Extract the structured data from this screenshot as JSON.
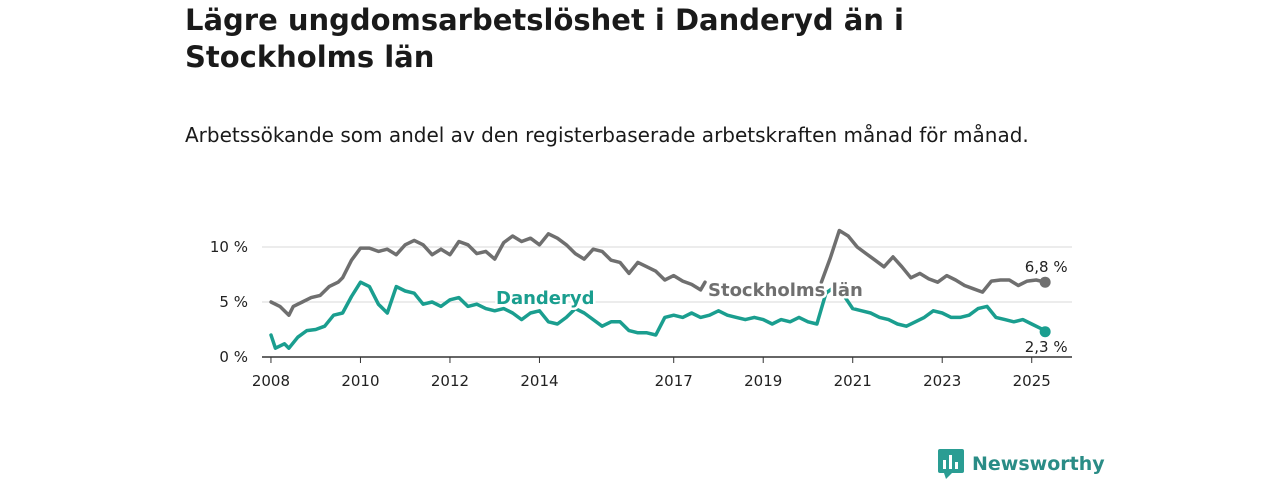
{
  "header": {
    "title": "Lägre ungdomsarbetslöshet i Danderyd än i Stockholms län",
    "subtitle": "Arbetssökande som andel av den registerbaserade arbetskraften månad för månad."
  },
  "brand": {
    "name": "Newsworthy",
    "icon": "newsworthy-logo-icon",
    "color": "#2a9d93"
  },
  "chart_data": {
    "type": "line",
    "x_unit": "year",
    "xlim": [
      2007.8,
      2025.9
    ],
    "ylim": [
      0,
      10
    ],
    "x_ticks": [
      {
        "value": 2008,
        "label": "2008"
      },
      {
        "value": 2010,
        "label": "2010"
      },
      {
        "value": 2012,
        "label": "2012"
      },
      {
        "value": 2014,
        "label": "2014"
      },
      {
        "value": 2017,
        "label": "2017"
      },
      {
        "value": 2019,
        "label": "2019"
      },
      {
        "value": 2021,
        "label": "2021"
      },
      {
        "value": 2023,
        "label": "2023"
      },
      {
        "value": 2025,
        "label": "2025"
      }
    ],
    "y_ticks": [
      {
        "value": 0,
        "label": "0 %"
      },
      {
        "value": 5,
        "label": "5 %"
      },
      {
        "value": 10,
        "label": "10 %"
      }
    ],
    "grid": true,
    "legend": "direct labels on lines",
    "series": [
      {
        "name": "Stockholms län",
        "color": "#6f6f6f",
        "end_label": "6,8 %",
        "points": [
          [
            2008.0,
            5.0
          ],
          [
            2008.2,
            4.6
          ],
          [
            2008.4,
            3.8
          ],
          [
            2008.5,
            4.6
          ],
          [
            2008.7,
            5.0
          ],
          [
            2008.9,
            5.4
          ],
          [
            2009.1,
            5.6
          ],
          [
            2009.3,
            6.4
          ],
          [
            2009.5,
            6.8
          ],
          [
            2009.6,
            7.2
          ],
          [
            2009.8,
            8.8
          ],
          [
            2010.0,
            9.9
          ],
          [
            2010.2,
            9.9
          ],
          [
            2010.4,
            9.6
          ],
          [
            2010.6,
            9.8
          ],
          [
            2010.8,
            9.3
          ],
          [
            2011.0,
            10.2
          ],
          [
            2011.2,
            10.6
          ],
          [
            2011.4,
            10.2
          ],
          [
            2011.6,
            9.3
          ],
          [
            2011.8,
            9.8
          ],
          [
            2012.0,
            9.3
          ],
          [
            2012.2,
            10.5
          ],
          [
            2012.4,
            10.2
          ],
          [
            2012.6,
            9.4
          ],
          [
            2012.8,
            9.6
          ],
          [
            2013.0,
            8.9
          ],
          [
            2013.2,
            10.4
          ],
          [
            2013.4,
            11.0
          ],
          [
            2013.6,
            10.5
          ],
          [
            2013.8,
            10.8
          ],
          [
            2014.0,
            10.2
          ],
          [
            2014.2,
            11.2
          ],
          [
            2014.4,
            10.8
          ],
          [
            2014.6,
            10.2
          ],
          [
            2014.8,
            9.4
          ],
          [
            2015.0,
            8.9
          ],
          [
            2015.2,
            9.8
          ],
          [
            2015.4,
            9.6
          ],
          [
            2015.6,
            8.8
          ],
          [
            2015.8,
            8.6
          ],
          [
            2016.0,
            7.6
          ],
          [
            2016.2,
            8.6
          ],
          [
            2016.4,
            8.2
          ],
          [
            2016.6,
            7.8
          ],
          [
            2016.8,
            7.0
          ],
          [
            2017.0,
            7.4
          ],
          [
            2017.2,
            6.9
          ],
          [
            2017.4,
            6.6
          ],
          [
            2017.6,
            6.1
          ],
          [
            2017.7,
            6.8
          ]
        ],
        "points_after_gap": [
          [
            2020.3,
            6.8
          ],
          [
            2020.5,
            9.0
          ],
          [
            2020.7,
            11.5
          ],
          [
            2020.9,
            11.0
          ],
          [
            2021.1,
            10.0
          ],
          [
            2021.3,
            9.4
          ],
          [
            2021.5,
            8.8
          ],
          [
            2021.7,
            8.2
          ],
          [
            2021.9,
            9.1
          ],
          [
            2022.1,
            8.2
          ],
          [
            2022.3,
            7.2
          ],
          [
            2022.5,
            7.6
          ],
          [
            2022.7,
            7.1
          ],
          [
            2022.9,
            6.8
          ],
          [
            2023.1,
            7.4
          ],
          [
            2023.3,
            7.0
          ],
          [
            2023.5,
            6.5
          ],
          [
            2023.7,
            6.2
          ],
          [
            2023.9,
            5.9
          ],
          [
            2024.1,
            6.9
          ],
          [
            2024.3,
            7.0
          ],
          [
            2024.5,
            7.0
          ],
          [
            2024.7,
            6.5
          ],
          [
            2024.9,
            6.9
          ],
          [
            2025.1,
            7.0
          ],
          [
            2025.3,
            6.8
          ]
        ]
      },
      {
        "name": "Danderyd",
        "color": "#1a9e8f",
        "end_label": "2,3 %",
        "points": [
          [
            2008.0,
            2.0
          ],
          [
            2008.1,
            0.8
          ],
          [
            2008.3,
            1.2
          ],
          [
            2008.4,
            0.8
          ],
          [
            2008.6,
            1.8
          ],
          [
            2008.8,
            2.4
          ],
          [
            2009.0,
            2.5
          ],
          [
            2009.2,
            2.8
          ],
          [
            2009.4,
            3.8
          ],
          [
            2009.6,
            4.0
          ],
          [
            2009.8,
            5.5
          ],
          [
            2010.0,
            6.8
          ],
          [
            2010.2,
            6.4
          ],
          [
            2010.4,
            4.8
          ],
          [
            2010.6,
            4.0
          ],
          [
            2010.8,
            6.4
          ],
          [
            2011.0,
            6.0
          ],
          [
            2011.2,
            5.8
          ],
          [
            2011.4,
            4.8
          ],
          [
            2011.6,
            5.0
          ],
          [
            2011.8,
            4.6
          ],
          [
            2012.0,
            5.2
          ],
          [
            2012.2,
            5.4
          ],
          [
            2012.4,
            4.6
          ],
          [
            2012.6,
            4.8
          ],
          [
            2012.8,
            4.4
          ],
          [
            2013.0,
            4.2
          ],
          [
            2013.2,
            4.4
          ],
          [
            2013.4,
            4.0
          ],
          [
            2013.6,
            3.4
          ],
          [
            2013.8,
            4.0
          ],
          [
            2014.0,
            4.2
          ],
          [
            2014.2,
            3.2
          ],
          [
            2014.4,
            3.0
          ],
          [
            2014.6,
            3.6
          ],
          [
            2014.8,
            4.4
          ],
          [
            2015.0,
            4.0
          ],
          [
            2015.2,
            3.4
          ],
          [
            2015.4,
            2.8
          ],
          [
            2015.6,
            3.2
          ],
          [
            2015.8,
            3.2
          ],
          [
            2016.0,
            2.4
          ],
          [
            2016.2,
            2.2
          ],
          [
            2016.4,
            2.2
          ],
          [
            2016.6,
            2.0
          ],
          [
            2016.8,
            3.6
          ],
          [
            2017.0,
            3.8
          ],
          [
            2017.2,
            3.6
          ],
          [
            2017.4,
            4.0
          ],
          [
            2017.6,
            3.6
          ],
          [
            2017.8,
            3.8
          ],
          [
            2018.0,
            4.2
          ],
          [
            2018.2,
            3.8
          ],
          [
            2018.4,
            3.6
          ],
          [
            2018.6,
            3.4
          ],
          [
            2018.8,
            3.6
          ],
          [
            2019.0,
            3.4
          ],
          [
            2019.2,
            3.0
          ],
          [
            2019.4,
            3.4
          ],
          [
            2019.6,
            3.2
          ],
          [
            2019.8,
            3.6
          ],
          [
            2020.0,
            3.2
          ],
          [
            2020.2,
            3.0
          ],
          [
            2020.4,
            5.8
          ],
          [
            2020.6,
            6.4
          ],
          [
            2020.8,
            5.6
          ],
          [
            2021.0,
            4.4
          ],
          [
            2021.2,
            4.2
          ],
          [
            2021.4,
            4.0
          ],
          [
            2021.6,
            3.6
          ],
          [
            2021.8,
            3.4
          ],
          [
            2022.0,
            3.0
          ],
          [
            2022.2,
            2.8
          ],
          [
            2022.4,
            3.2
          ],
          [
            2022.6,
            3.6
          ],
          [
            2022.8,
            4.2
          ],
          [
            2023.0,
            4.0
          ],
          [
            2023.2,
            3.6
          ],
          [
            2023.4,
            3.6
          ],
          [
            2023.6,
            3.8
          ],
          [
            2023.8,
            4.4
          ],
          [
            2024.0,
            4.6
          ],
          [
            2024.2,
            3.6
          ],
          [
            2024.4,
            3.4
          ],
          [
            2024.6,
            3.2
          ],
          [
            2024.8,
            3.4
          ],
          [
            2025.0,
            3.0
          ],
          [
            2025.2,
            2.6
          ],
          [
            2025.3,
            2.3
          ]
        ]
      }
    ]
  }
}
